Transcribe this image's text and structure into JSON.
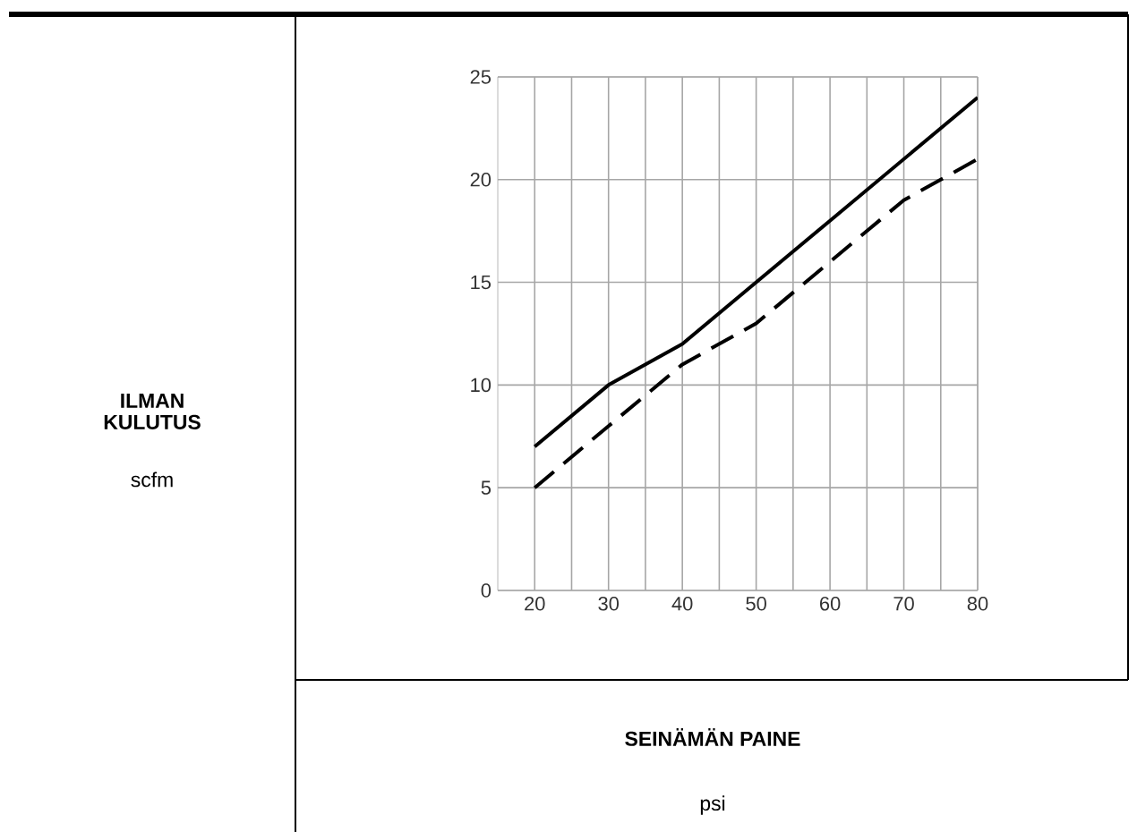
{
  "chart_data": {
    "type": "line",
    "annotations": [
      "ILMAN KULUTUS",
      "scfm",
      "SEINÄMÄN PAINE",
      "psi"
    ],
    "series": [
      {
        "color": "#000000",
        "line_style": "solid",
        "x": [
          20,
          30,
          40,
          50,
          60,
          70,
          80
        ],
        "values": [
          7,
          10,
          12,
          15,
          18,
          21,
          24
        ]
      },
      {
        "color": "#000000",
        "line_style": "dashed",
        "x": [
          20,
          30,
          40,
          50,
          60,
          70,
          75,
          80
        ],
        "values": [
          5,
          8,
          11,
          13,
          16,
          19,
          20,
          21
        ]
      }
    ],
    "xlim": [
      15,
      80
    ],
    "ylim": [
      0,
      25
    ],
    "xticks": [
      20,
      {
        "value": 25,
        "label": null
      },
      30,
      {
        "value": 35,
        "label": null
      },
      40,
      {
        "value": 45,
        "label": null
      },
      50,
      {
        "value": 55,
        "label": null
      },
      60,
      {
        "value": 65,
        "label": null
      },
      70,
      {
        "value": 75,
        "label": null
      },
      80
    ],
    "yticks": [
      0,
      5,
      10,
      15,
      20,
      25
    ],
    "grid": true,
    "marker": "none"
  }
}
